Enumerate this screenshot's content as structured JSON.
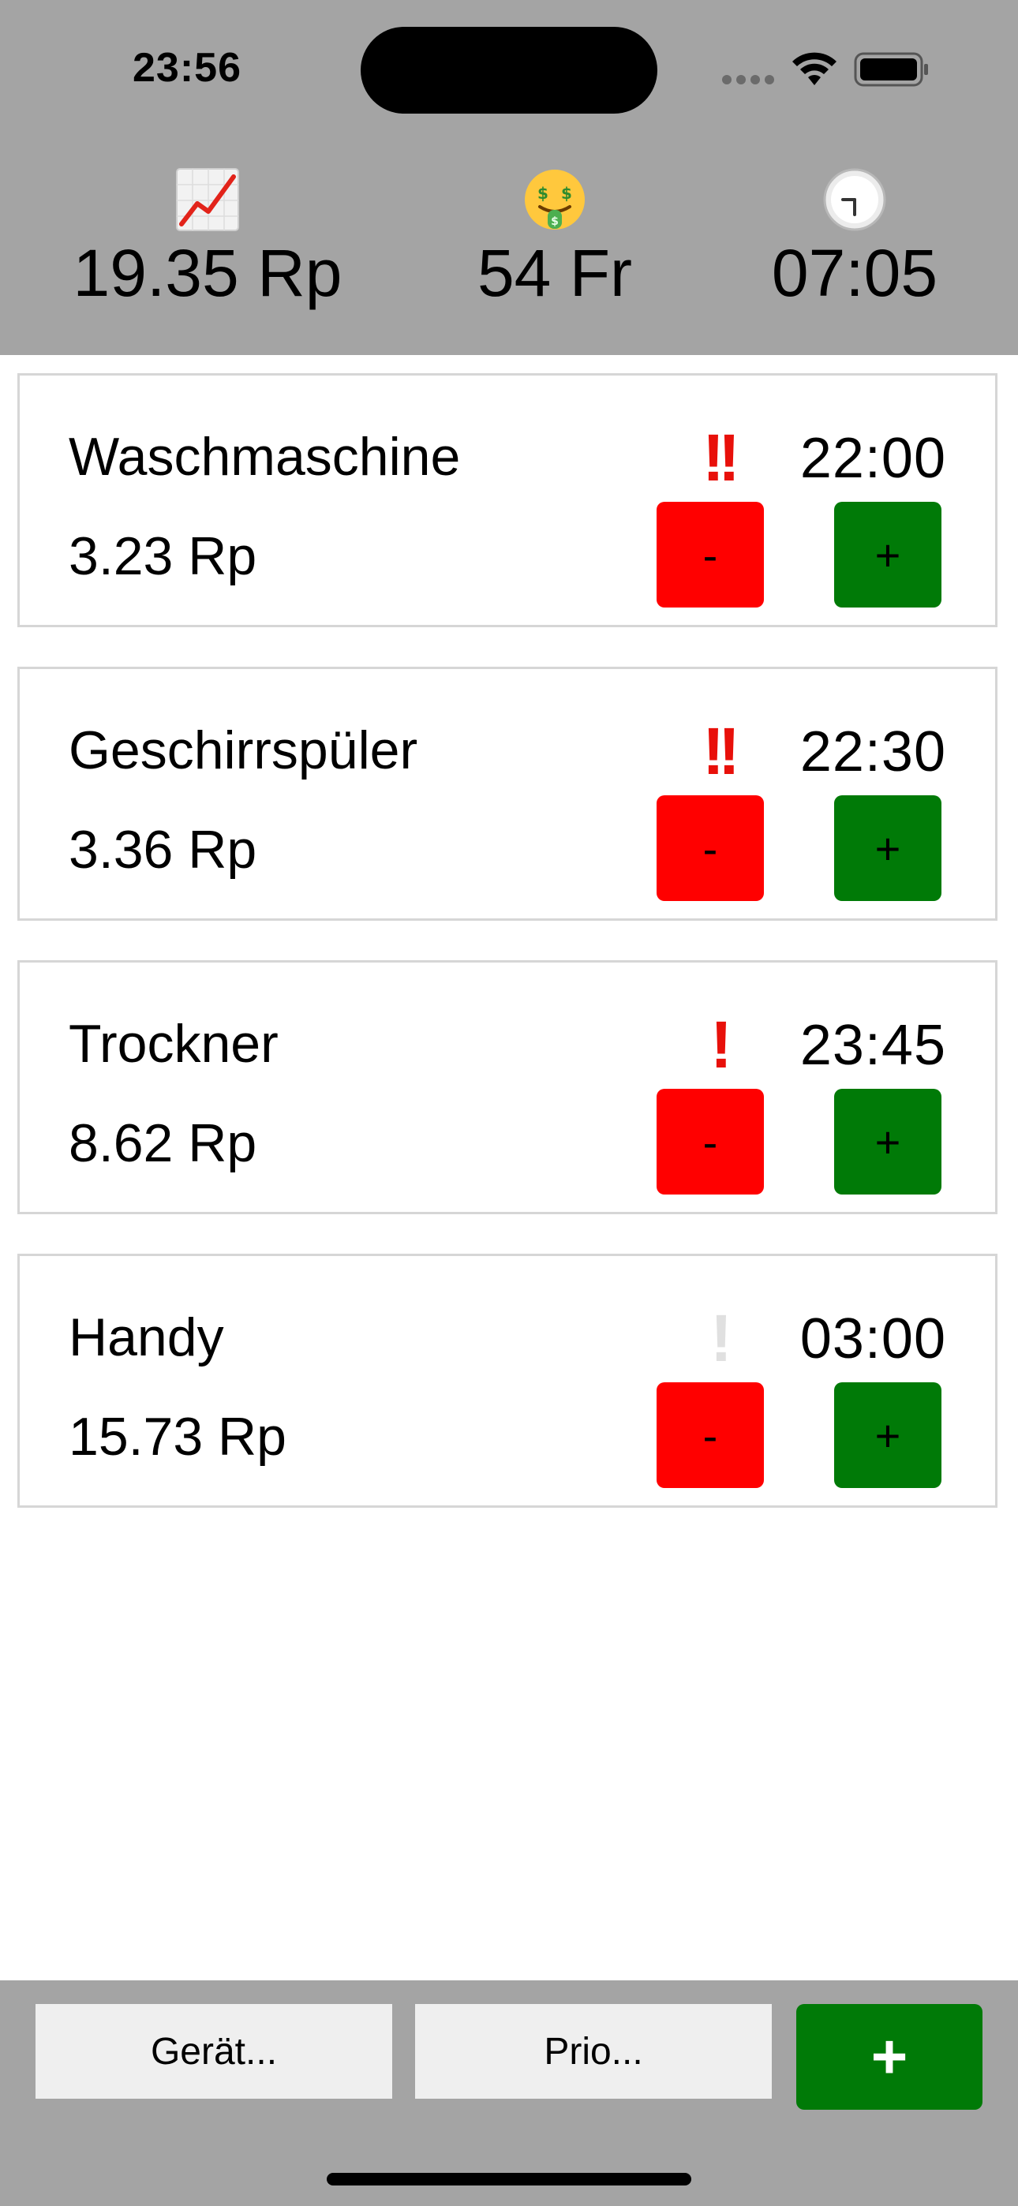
{
  "status_bar": {
    "time": "23:56"
  },
  "header": {
    "stats": [
      {
        "icon": "chart-increasing-icon",
        "value": "19.35 Rp"
      },
      {
        "icon": "money-mouth-face-icon",
        "value": "54 Fr"
      },
      {
        "icon": "clock-icon",
        "value": "07:05"
      }
    ]
  },
  "devices": [
    {
      "name": "Waschmaschine",
      "price": "3.23 Rp",
      "priority": "!!",
      "time": "22:00",
      "minus_label": "-",
      "plus_label": "+"
    },
    {
      "name": "Geschirrspüler",
      "price": "3.36 Rp",
      "priority": "!!",
      "time": "22:30",
      "minus_label": "-",
      "plus_label": "+"
    },
    {
      "name": "Trockner",
      "price": "8.62 Rp",
      "priority": "!",
      "time": "23:45",
      "minus_label": "-",
      "plus_label": "+"
    },
    {
      "name": "Handy",
      "price": "15.73 Rp",
      "priority": "!",
      "priority_active": false,
      "time": "03:00",
      "minus_label": "-",
      "plus_label": "+"
    }
  ],
  "bottom_bar": {
    "device_label": "Gerät...",
    "prio_label": "Prio...",
    "add_label": "+"
  },
  "colors": {
    "header_bg": "#a4a4a4",
    "minus_button": "#ff0000",
    "plus_button": "#007a07",
    "priority_active": "#e8100a",
    "priority_inactive": "#e0e0e0"
  }
}
